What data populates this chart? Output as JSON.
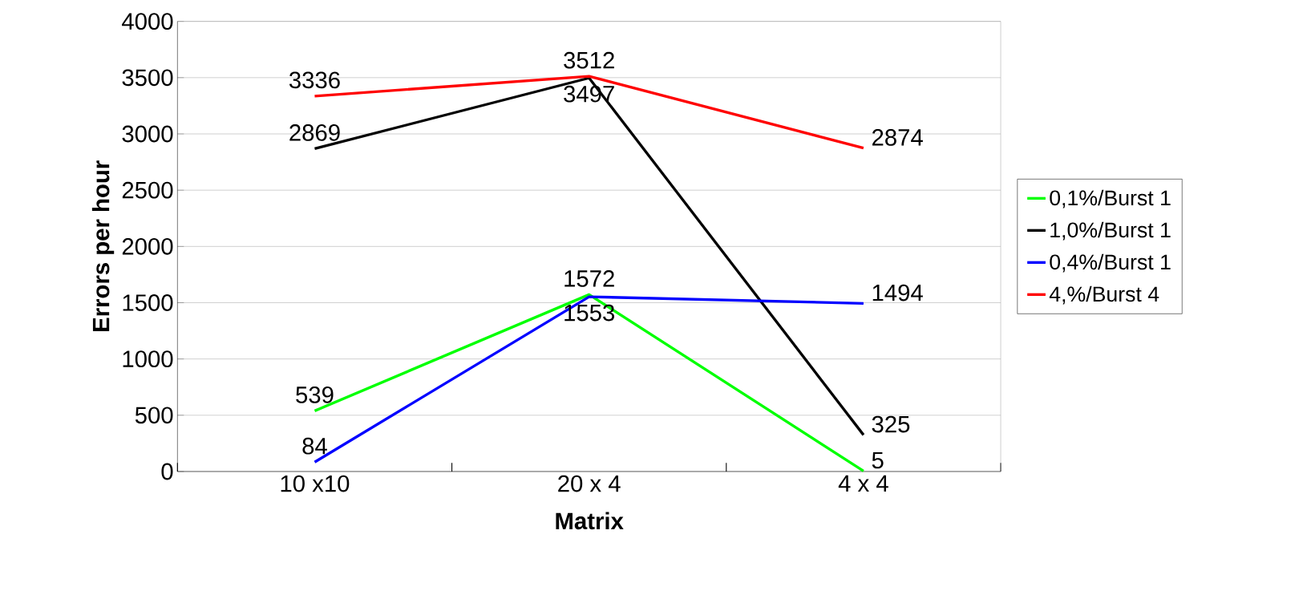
{
  "chart_data": {
    "type": "line",
    "xlabel": "Matrix",
    "ylabel": "Errors per hour",
    "categories": [
      "10 x10",
      "20 x 4",
      "4 x 4"
    ],
    "series": [
      {
        "name": "0,1%/Burst 1",
        "color": "#00ff00",
        "values": [
          539,
          1572,
          5
        ]
      },
      {
        "name": "1,0%/Burst 1",
        "color": "#000000",
        "values": [
          2869,
          3497,
          325
        ]
      },
      {
        "name": "0,4%/Burst 1",
        "color": "#0000ff",
        "values": [
          84,
          1553,
          1494
        ]
      },
      {
        "name": "4,%/Burst 4",
        "color": "#ff0000",
        "values": [
          3336,
          3512,
          2874
        ]
      }
    ],
    "ylim": [
      0,
      4000
    ],
    "yticks": [
      0,
      500,
      1000,
      1500,
      2000,
      2500,
      3000,
      3500,
      4000
    ],
    "grid": "y",
    "legend": "right",
    "data_labels": true,
    "marker": "none",
    "line_style": "solid"
  }
}
